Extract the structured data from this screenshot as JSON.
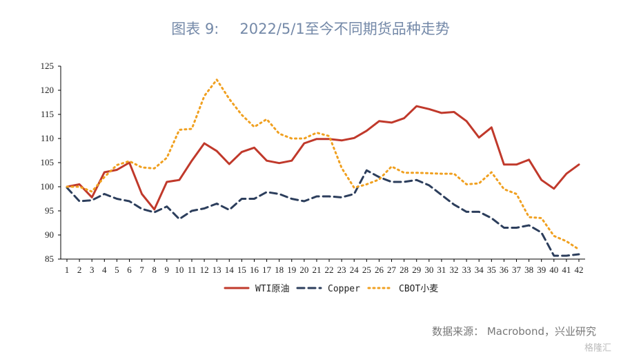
{
  "title_prefix": "图表 9:",
  "title_text": "2022/5/1至今不同期货品种走势",
  "source": "数据来源： Macrobond，兴业研究",
  "watermark": "格隆汇",
  "chart_data": {
    "type": "line",
    "x": [
      1,
      2,
      3,
      4,
      5,
      6,
      7,
      8,
      9,
      10,
      11,
      12,
      13,
      14,
      15,
      16,
      17,
      18,
      19,
      20,
      21,
      22,
      23,
      24,
      25,
      26,
      27,
      28,
      29,
      30,
      31,
      32,
      33,
      34,
      35,
      36,
      37,
      38,
      39,
      40,
      41,
      42
    ],
    "ylim": [
      85,
      125
    ],
    "yticks": [
      85,
      90,
      95,
      100,
      105,
      110,
      115,
      120,
      125
    ],
    "legend_position": "bottom",
    "series": [
      {
        "name": "WTI原油",
        "color": "#c0392b",
        "style": "solid",
        "values": [
          100,
          100.5,
          97.8,
          103,
          103.5,
          105,
          98.5,
          95.3,
          101,
          101.4,
          105.4,
          109,
          107.4,
          104.7,
          107.2,
          108.1,
          105.4,
          104.9,
          105.4,
          109,
          109.9,
          109.9,
          109.6,
          110.1,
          111.6,
          113.6,
          113.3,
          114.2,
          116.7,
          116.1,
          115.3,
          115.5,
          113.6,
          110.2,
          112.3,
          104.6,
          104.6,
          105.6,
          101.4,
          99.6,
          102.7,
          104.6
        ]
      },
      {
        "name": "Copper",
        "color": "#2c3e5c",
        "style": "dashed",
        "values": [
          99.8,
          97,
          97.2,
          98.5,
          97.5,
          97,
          95.4,
          94.7,
          95.9,
          93.3,
          95,
          95.5,
          96.5,
          95.2,
          97.5,
          97.5,
          98.9,
          98.5,
          97.5,
          97,
          98,
          98,
          97.8,
          98.5,
          103.4,
          102,
          101,
          101,
          101.4,
          100.3,
          98.3,
          96.3,
          94.8,
          94.8,
          93.5,
          91.5,
          91.5,
          92,
          90.5,
          85.7,
          85.7,
          86
        ]
      },
      {
        "name": "CBOT小麦",
        "color": "#f0a020",
        "style": "dotted",
        "values": [
          100,
          100,
          99,
          102,
          104.5,
          105.3,
          104,
          103.8,
          106,
          111.8,
          112,
          118.8,
          122.2,
          118.2,
          114.9,
          112.4,
          114,
          111,
          110,
          110,
          111.2,
          110.5,
          103.9,
          99.8,
          100.5,
          101.5,
          104.2,
          102.9,
          102.9,
          102.8,
          102.7,
          102.7,
          100.5,
          100.7,
          103,
          99.5,
          98.5,
          93.7,
          93.5,
          89.8,
          88.7,
          87
        ]
      }
    ]
  }
}
